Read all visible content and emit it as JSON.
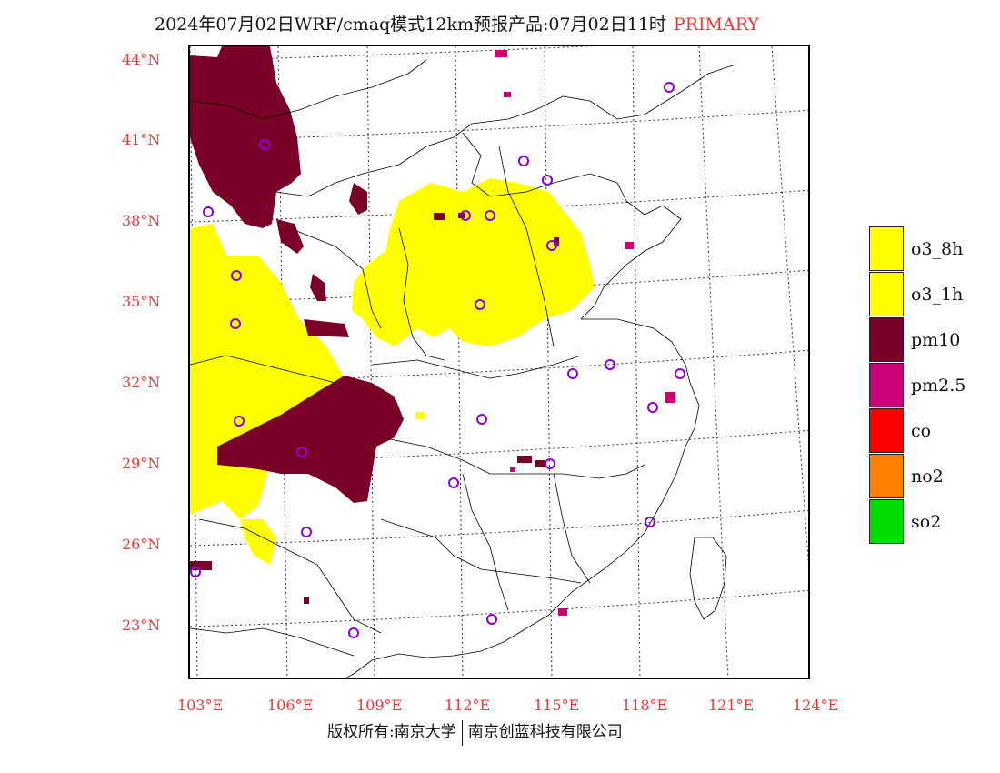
{
  "header": {
    "title": "2024年07月02日WRF/cmaq模式12km预报产品:07月02日11时",
    "tag": "PRIMARY"
  },
  "axes": {
    "lat_labels": [
      "44°N",
      "41°N",
      "38°N",
      "35°N",
      "32°N",
      "29°N",
      "26°N",
      "23°N"
    ],
    "lon_labels": [
      "103°E",
      "106°E",
      "109°E",
      "112°E",
      "115°E",
      "118°E",
      "121°E",
      "124°E"
    ]
  },
  "legend": {
    "items": [
      {
        "label": "o3_8h",
        "color": "#ffff00"
      },
      {
        "label": "o3_1h",
        "color": "#ffff00"
      },
      {
        "label": "pm10",
        "color": "#7a0028"
      },
      {
        "label": "pm2.5",
        "color": "#cc0077"
      },
      {
        "label": "co",
        "color": "#ff0000"
      },
      {
        "label": "no2",
        "color": "#ff8000"
      },
      {
        "label": "so2",
        "color": "#00dd00"
      }
    ]
  },
  "colors": {
    "o3": "#ffff00",
    "pm10": "#7a0028",
    "pm25": "#cc0077",
    "station": "#8a00e0"
  },
  "footer": {
    "left": "版权所有:南京大学",
    "right": "南京创蓝科技有限公司"
  }
}
